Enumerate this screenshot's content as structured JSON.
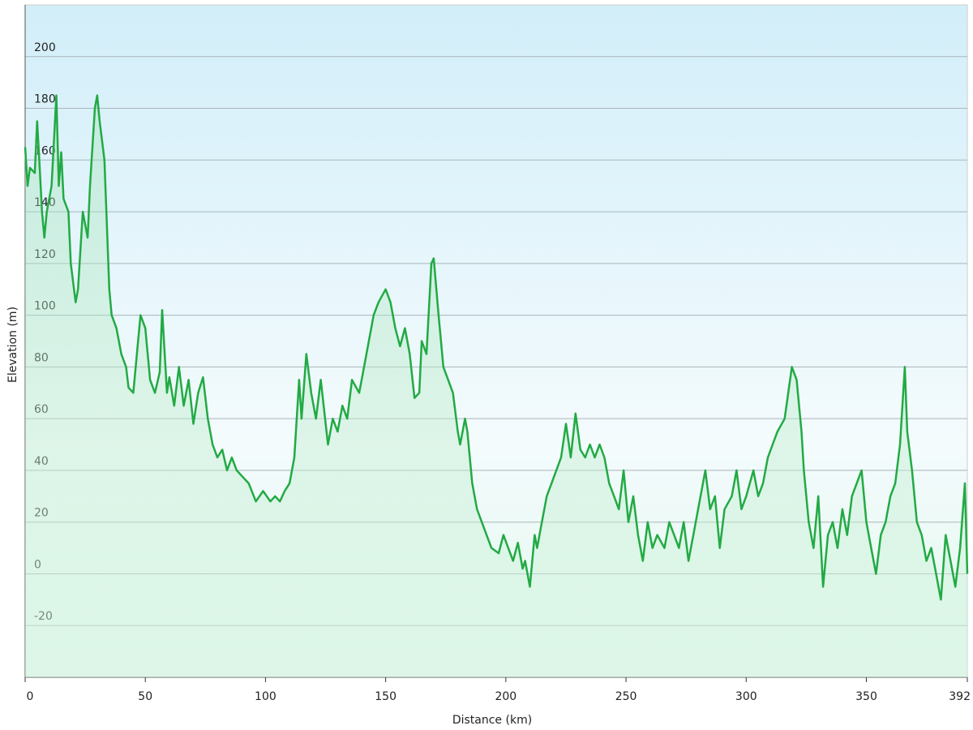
{
  "chart_data": {
    "type": "line",
    "xlabel": "Distance  (km)",
    "ylabel": "Elevation (m)",
    "color": "#22aa44",
    "grid": true,
    "xlim": [
      0,
      392
    ],
    "ylim": [
      -40,
      220
    ],
    "xticks": [
      0,
      50,
      100,
      150,
      200,
      250,
      300,
      350,
      392
    ],
    "yticks": [
      -20,
      0,
      20,
      40,
      60,
      80,
      100,
      120,
      140,
      160,
      180,
      200
    ],
    "x": [
      0,
      1,
      2,
      4,
      5,
      6,
      7,
      8,
      9,
      11,
      13,
      14,
      15,
      16,
      18,
      19,
      21,
      22,
      24,
      26,
      27,
      28,
      29,
      30,
      31,
      33,
      35,
      36,
      38,
      40,
      42,
      43,
      45,
      47,
      48,
      50,
      52,
      54,
      56,
      57,
      59,
      60,
      62,
      64,
      66,
      68,
      70,
      72,
      74,
      76,
      78,
      80,
      82,
      84,
      86,
      88,
      90,
      93,
      96,
      99,
      102,
      104,
      106,
      108,
      110,
      112,
      114,
      115,
      117,
      119,
      121,
      123,
      126,
      128,
      130,
      132,
      134,
      136,
      139,
      141,
      143,
      145,
      147,
      150,
      152,
      154,
      156,
      158,
      160,
      162,
      164,
      165,
      167,
      169,
      170,
      172,
      174,
      176,
      178,
      180,
      181,
      183,
      184,
      186,
      188,
      190,
      192,
      194,
      197,
      199,
      201,
      203,
      205,
      207,
      208,
      210,
      212,
      213,
      215,
      217,
      219,
      221,
      223,
      225,
      227,
      229,
      231,
      233,
      235,
      237,
      239,
      241,
      243,
      245,
      247,
      249,
      251,
      253,
      255,
      257,
      259,
      261,
      263,
      266,
      268,
      270,
      272,
      274,
      276,
      278,
      280,
      283,
      285,
      287,
      289,
      291,
      294,
      296,
      298,
      300,
      303,
      305,
      307,
      309,
      311,
      313,
      316,
      319,
      321,
      323,
      324,
      326,
      328,
      330,
      332,
      334,
      336,
      338,
      340,
      342,
      344,
      346,
      348,
      350,
      352,
      354,
      356,
      358,
      360,
      362,
      364,
      366,
      367,
      369,
      371,
      373,
      375,
      377,
      379,
      381,
      383,
      385,
      387,
      389,
      391,
      392
    ],
    "values": [
      165,
      150,
      157,
      155,
      175,
      158,
      140,
      130,
      140,
      150,
      185,
      150,
      163,
      145,
      140,
      120,
      105,
      110,
      140,
      130,
      150,
      165,
      180,
      185,
      175,
      160,
      110,
      100,
      95,
      85,
      80,
      72,
      70,
      90,
      100,
      95,
      75,
      70,
      78,
      102,
      70,
      76,
      65,
      80,
      65,
      75,
      58,
      70,
      76,
      60,
      50,
      45,
      48,
      40,
      45,
      40,
      38,
      35,
      28,
      32,
      28,
      30,
      28,
      32,
      35,
      45,
      75,
      60,
      85,
      70,
      60,
      75,
      50,
      60,
      55,
      65,
      60,
      75,
      70,
      80,
      90,
      100,
      105,
      110,
      105,
      95,
      88,
      95,
      85,
      68,
      70,
      90,
      85,
      120,
      122,
      100,
      80,
      75,
      70,
      55,
      50,
      60,
      55,
      35,
      25,
      20,
      15,
      10,
      8,
      15,
      10,
      5,
      12,
      2,
      5,
      -5,
      15,
      10,
      20,
      30,
      35,
      40,
      45,
      58,
      45,
      62,
      48,
      45,
      50,
      45,
      50,
      45,
      35,
      30,
      25,
      40,
      20,
      30,
      15,
      5,
      20,
      10,
      15,
      10,
      20,
      15,
      10,
      20,
      5,
      15,
      25,
      40,
      25,
      30,
      10,
      25,
      30,
      40,
      25,
      30,
      40,
      30,
      35,
      45,
      50,
      55,
      60,
      80,
      75,
      55,
      40,
      20,
      10,
      30,
      -5,
      15,
      20,
      10,
      25,
      15,
      30,
      35,
      40,
      20,
      10,
      0,
      15,
      20,
      30,
      35,
      50,
      80,
      55,
      40,
      20,
      15,
      5,
      10,
      0,
      -10,
      15,
      5,
      -5,
      10,
      35,
      0
    ]
  }
}
